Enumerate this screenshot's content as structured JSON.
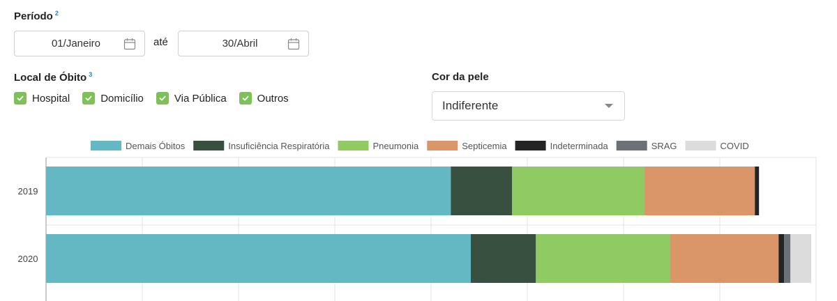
{
  "periodo": {
    "label": "Período",
    "sup": "2",
    "start": "01/Janeiro",
    "separator": "até",
    "end": "30/Abril"
  },
  "local_obito": {
    "label": "Local de Óbito",
    "sup": "3",
    "options": [
      "Hospital",
      "Domicílio",
      "Via Pública",
      "Outros"
    ]
  },
  "cor_pele": {
    "label": "Cor da pele",
    "selected": "Indiferente"
  },
  "colors": {
    "check": "#7ec05a",
    "input_border": "#cfcfcf"
  },
  "icons": {
    "date": "calendar-icon",
    "check": "check-icon",
    "select": "caret-down-icon"
  },
  "chart_data": {
    "type": "bar",
    "orientation": "horizontal",
    "stacked": true,
    "categories": [
      "2019",
      "2020"
    ],
    "legend_position": "top",
    "grid": true,
    "series": [
      {
        "name": "Demais Óbitos",
        "color": "#63b8c4",
        "values": [
          4196,
          4403
        ]
      },
      {
        "name": "Insuficiência Respiratória",
        "color": "#375040",
        "values": [
          636,
          675
        ]
      },
      {
        "name": "Pneumonia",
        "color": "#8fcb62",
        "values": [
          1372,
          1390
        ]
      },
      {
        "name": "Septicemia",
        "color": "#da9669",
        "values": [
          1144,
          1126
        ]
      },
      {
        "name": "Indeterminada",
        "color": "#242424",
        "values": [
          43,
          58
        ]
      },
      {
        "name": "SRAG",
        "color": "#6c7178",
        "values": [
          0,
          65
        ]
      },
      {
        "name": "COVID",
        "color": "#dcdcdc",
        "values": [
          0,
          215
        ]
      }
    ],
    "xlim": [
      0,
      8000
    ]
  }
}
